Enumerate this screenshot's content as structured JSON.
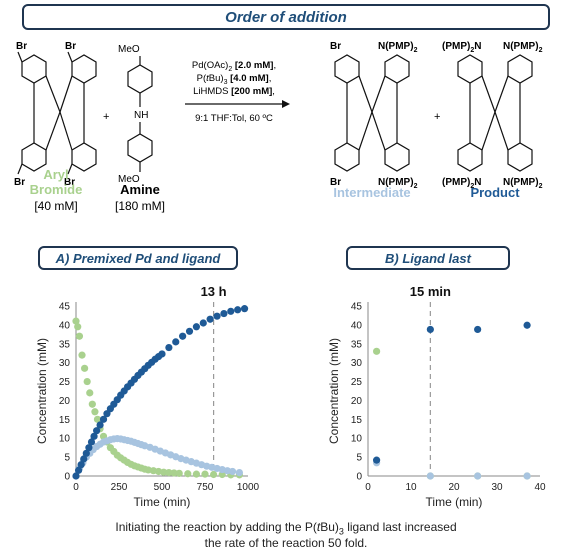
{
  "banner_title": "Order of addition",
  "scheme": {
    "aryl_bromide_label_1": "Aryl",
    "aryl_bromide_label_2": "Bromide",
    "aryl_bromide_conc": "[40 mM]",
    "amine_label": "Amine",
    "amine_conc": "[180 mM]",
    "plus": "+",
    "cond_line1_pre": "Pd(OAc)",
    "cond_line1_sub": "2",
    "cond_line1_val": "[2.0 mM]",
    "cond_line2_pre": "P(",
    "cond_line2_ital": "t",
    "cond_line2_mid": "Bu)",
    "cond_line2_sub": "3",
    "cond_line2_val": "[4.0 mM]",
    "cond_line3_pre": "LiHMDS",
    "cond_line3_val": "[200 mM]",
    "cond_line4": "9:1 THF:Tol, 60 ºC",
    "intermediate_label": "Intermediate",
    "product_label": "Product",
    "br": "Br",
    "meo": "MeO",
    "nh": "NH",
    "npmp2": "N(PMP)",
    "pmp2n": "(PMP)",
    "sub2": "2"
  },
  "panel_a_title": "A) Premixed Pd and ligand",
  "panel_b_title": "B) Ligand last",
  "caption_line1": "Initiating the reaction by adding the P(tBu)3 ligand last increased",
  "caption_line2": "the rate of the reaction 50 fold.",
  "colors": {
    "aryl_bromide": "#a9d18e",
    "intermediate": "#a8c4e0",
    "product": "#1f5a96",
    "banner_text": "#1f4e79"
  },
  "chart_data": [
    {
      "type": "scatter",
      "title": "",
      "xlabel": "Time (min)",
      "ylabel": "Concentration (mM)",
      "xlim": [
        0,
        1000
      ],
      "ylim": [
        0,
        45
      ],
      "xticks": [
        0,
        250,
        500,
        750,
        1000
      ],
      "yticks": [
        0,
        5,
        10,
        15,
        20,
        25,
        30,
        35,
        40,
        45
      ],
      "grid": false,
      "annotation": {
        "text": "13 h",
        "x": 800
      },
      "series": [
        {
          "name": "Aryl Bromide",
          "color": "#a9d18e",
          "x": [
            0,
            10,
            20,
            35,
            50,
            65,
            80,
            95,
            110,
            125,
            140,
            160,
            180,
            200,
            220,
            240,
            260,
            280,
            300,
            320,
            340,
            360,
            380,
            400,
            420,
            450,
            480,
            510,
            540,
            570,
            600,
            650,
            700,
            750,
            800,
            850,
            900,
            950
          ],
          "y": [
            41,
            39.5,
            37,
            32,
            28.5,
            25,
            22,
            19,
            17,
            15,
            12.5,
            10.5,
            9,
            7.5,
            6.5,
            5.5,
            4.8,
            4.2,
            3.6,
            3.1,
            2.7,
            2.4,
            2.1,
            1.8,
            1.6,
            1.4,
            1.2,
            1.0,
            0.9,
            0.8,
            0.7,
            0.6,
            0.5,
            0.5,
            0.4,
            0.4,
            0.3,
            0.3
          ]
        },
        {
          "name": "Intermediate",
          "color": "#a8c4e0",
          "x": [
            0,
            20,
            40,
            60,
            80,
            100,
            120,
            140,
            160,
            180,
            200,
            220,
            240,
            260,
            280,
            300,
            320,
            340,
            360,
            380,
            400,
            430,
            460,
            490,
            520,
            550,
            580,
            610,
            640,
            670,
            700,
            730,
            760,
            790,
            820,
            850,
            880,
            910,
            950
          ],
          "y": [
            0,
            2,
            3.5,
            5,
            6,
            7,
            7.8,
            8.4,
            9,
            9.3,
            9.6,
            9.8,
            9.9,
            9.8,
            9.6,
            9.4,
            9.2,
            8.9,
            8.6,
            8.3,
            8.0,
            7.6,
            7.1,
            6.6,
            6.1,
            5.6,
            5.1,
            4.6,
            4.2,
            3.8,
            3.4,
            3.0,
            2.6,
            2.3,
            2.0,
            1.7,
            1.4,
            1.2,
            0.9
          ]
        },
        {
          "name": "Product",
          "color": "#1f5a96",
          "x": [
            0,
            15,
            30,
            45,
            60,
            75,
            90,
            105,
            120,
            140,
            160,
            180,
            200,
            220,
            240,
            260,
            280,
            300,
            320,
            340,
            360,
            380,
            400,
            420,
            440,
            460,
            480,
            500,
            540,
            580,
            620,
            660,
            700,
            740,
            780,
            820,
            860,
            900,
            940,
            980
          ],
          "y": [
            0,
            1.5,
            3,
            4.5,
            6,
            7.5,
            9,
            10.5,
            12,
            13.5,
            15,
            16.5,
            17.8,
            19,
            20.2,
            21.4,
            22.5,
            23.6,
            24.6,
            25.6,
            26.6,
            27.5,
            28.4,
            29.3,
            30.1,
            30.9,
            31.6,
            32.3,
            34,
            35.5,
            37,
            38.3,
            39.5,
            40.5,
            41.5,
            42.3,
            43,
            43.6,
            44,
            44.3
          ]
        }
      ]
    },
    {
      "type": "scatter",
      "title": "",
      "xlabel": "Time (min)",
      "ylabel": "Concentration (mM)",
      "xlim": [
        0,
        40
      ],
      "ylim": [
        0,
        45
      ],
      "xticks": [
        0,
        10,
        20,
        30,
        40
      ],
      "yticks": [
        0,
        5,
        10,
        15,
        20,
        25,
        30,
        35,
        40,
        45
      ],
      "grid": false,
      "annotation": {
        "text": "15 min",
        "x": 14.5
      },
      "series": [
        {
          "name": "Aryl Bromide",
          "color": "#a9d18e",
          "x": [
            2,
            14.5,
            25.5,
            37
          ],
          "y": [
            33,
            0,
            0,
            0
          ]
        },
        {
          "name": "Intermediate",
          "color": "#a8c4e0",
          "x": [
            2,
            14.5,
            25.5,
            37
          ],
          "y": [
            3.5,
            0,
            0,
            0
          ]
        },
        {
          "name": "Product",
          "color": "#1f5a96",
          "x": [
            2,
            14.5,
            25.5,
            37
          ],
          "y": [
            4.2,
            38.8,
            38.8,
            39.9
          ]
        }
      ]
    }
  ]
}
